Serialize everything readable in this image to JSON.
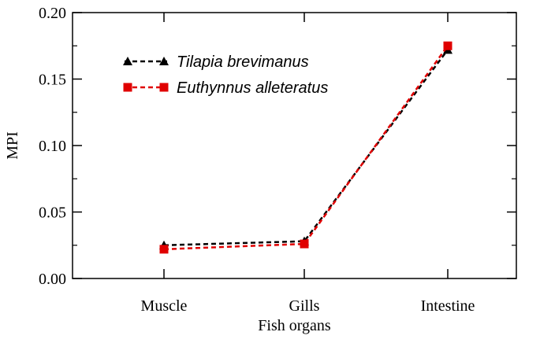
{
  "chart_data": {
    "type": "line",
    "title": "",
    "xlabel": "Fish organs",
    "ylabel": "MPI",
    "categories": [
      "Muscle",
      "Gills",
      "Intestine"
    ],
    "ylim": [
      0,
      0.2
    ],
    "yticks": [
      "0.00",
      "0.05",
      "0.10",
      "0.15",
      "0.20"
    ],
    "grid": false,
    "legend_position": "top-left",
    "series": [
      {
        "name": "Tilapia brevimanus",
        "values": [
          0.025,
          0.028,
          0.172
        ],
        "color": "#000000",
        "marker": "triangle",
        "line_style": "dashed"
      },
      {
        "name": "Euthynnus alleteratus",
        "values": [
          0.022,
          0.026,
          0.175
        ],
        "color": "#e00000",
        "marker": "square",
        "line_style": "dashed"
      }
    ]
  }
}
